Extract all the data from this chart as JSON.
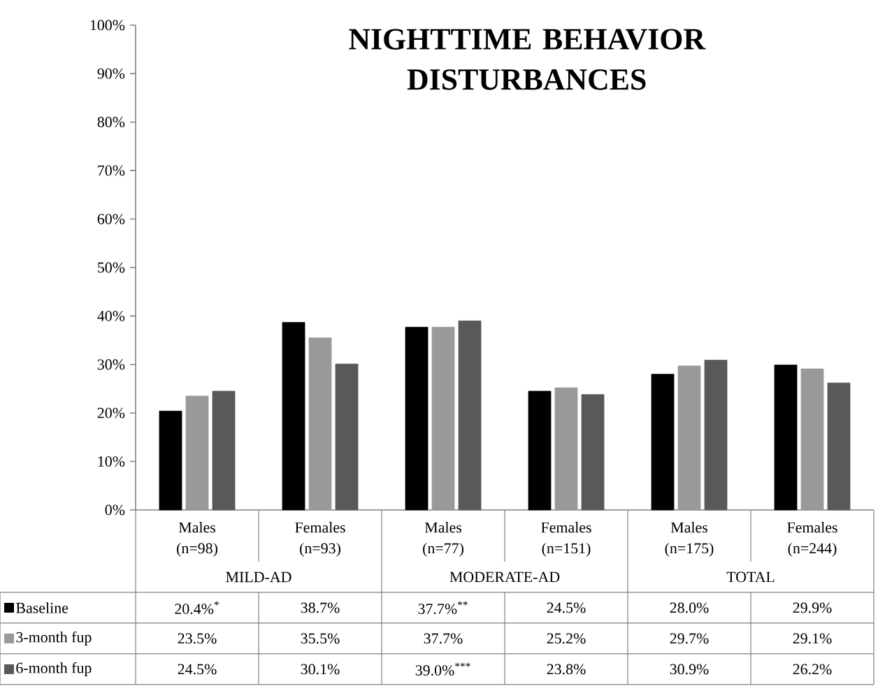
{
  "chart_data": {
    "type": "bar",
    "title": "NIGHTTIME BEHAVIOR DISTURBANCES",
    "categories": [
      "Males (n=98)",
      "Females (n=93)",
      "Males (n=77)",
      "Females (n=151)",
      "Males (n=175)",
      "Females (n=244)"
    ],
    "series": [
      {
        "name": "Baseline",
        "color": "#000000",
        "values": [
          20.4,
          38.7,
          37.7,
          24.5,
          28.0,
          29.9
        ],
        "value_labels": [
          "20.4%$^{*}$",
          "38.7%",
          "37.7%$^{**}$",
          "24.5%",
          "28.0%",
          "29.9%"
        ]
      },
      {
        "name": "3-month fup",
        "color": "#999999",
        "values": [
          23.5,
          35.5,
          37.7,
          25.2,
          29.7,
          29.1
        ],
        "value_labels": [
          "23.5%",
          "35.5%",
          "37.7%",
          "25.2%",
          "29.7%",
          "29.1%"
        ]
      },
      {
        "name": "6-month fup",
        "color": "#595959",
        "values": [
          24.5,
          30.1,
          39.0,
          23.8,
          30.9,
          26.2
        ],
        "value_labels": [
          "24.5%",
          "30.1%",
          "39.0%$^{***}$",
          "23.8%",
          "30.9%",
          "26.2%"
        ]
      }
    ],
    "annotations": [
      "MILD-AD",
      "MODERATE-AD",
      "TOTAL"
    ],
    "ylim": [
      0,
      100
    ],
    "yticks": [
      {
        "value": 0,
        "label": "0%"
      },
      {
        "value": 10,
        "label": "10%"
      },
      {
        "value": 20,
        "label": "20%"
      },
      {
        "value": 30,
        "label": "30%"
      },
      {
        "value": 40,
        "label": "40%"
      },
      {
        "value": 50,
        "label": "50%"
      },
      {
        "value": 60,
        "label": "60%"
      },
      {
        "value": 70,
        "label": "70%"
      },
      {
        "value": 80,
        "label": "80%"
      },
      {
        "value": 90,
        "label": "90%"
      },
      {
        "value": 100,
        "label": "100%"
      }
    ],
    "legend": "bottom left"
  }
}
